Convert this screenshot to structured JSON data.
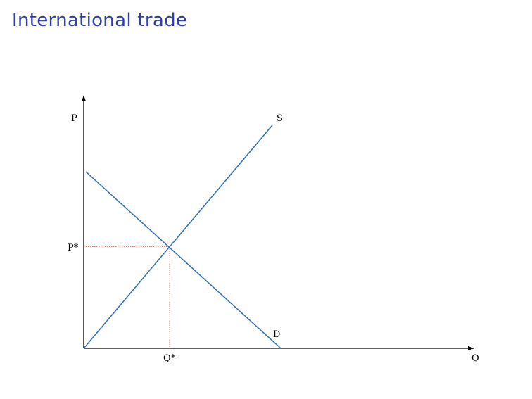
{
  "title": "International trade",
  "colors": {
    "title": "#2f3fa8",
    "curve": "#2e6db4",
    "axis": "#000000",
    "guide": "#e05a4a"
  },
  "diagram": {
    "type": "supply-demand",
    "axes": {
      "y_label": "P",
      "x_label": "Q"
    },
    "curves": {
      "supply_label": "S",
      "demand_label": "D"
    },
    "equilibrium": {
      "price_label": "P*",
      "quantity_label": "Q*"
    }
  }
}
